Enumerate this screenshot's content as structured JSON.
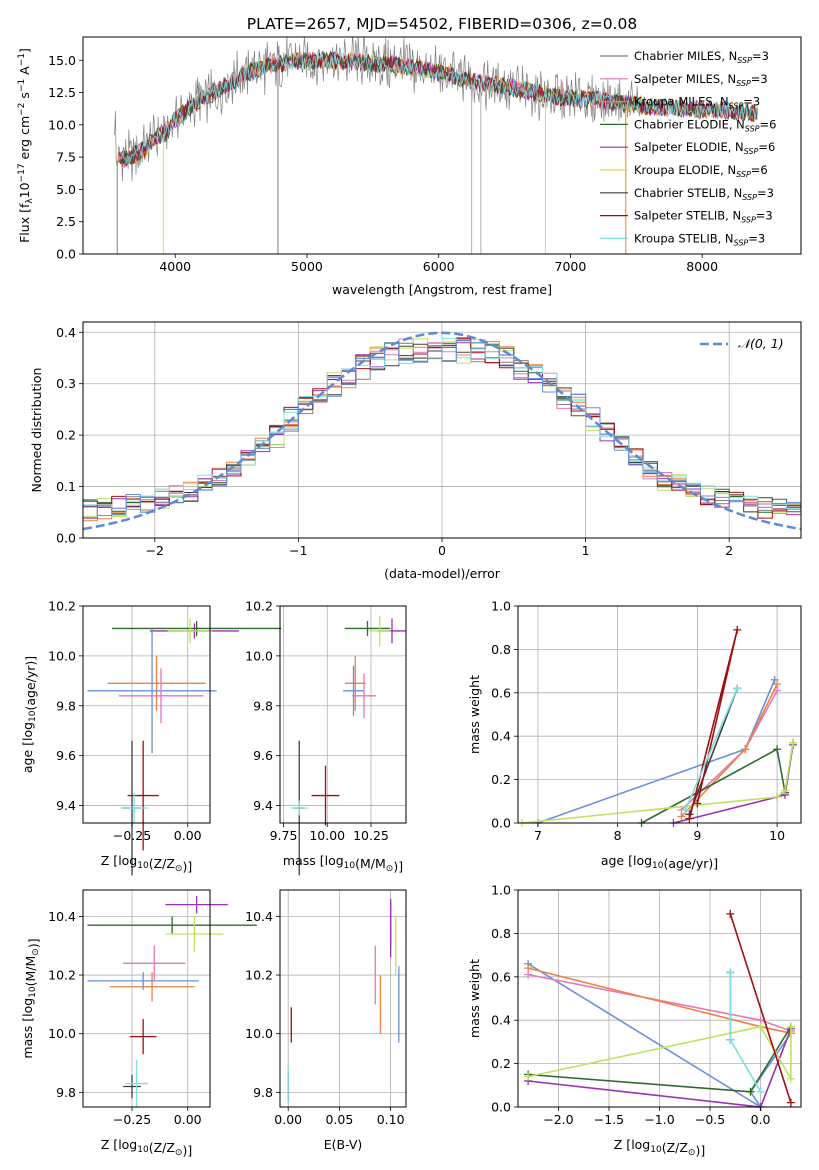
{
  "title": "PLATE=2657, MJD=54502, FIBERID=0306, z=0.08",
  "colors": [
    "#808080",
    "#e377c2",
    "#ff7f0e",
    "#2f6b2f",
    "#9b30b3",
    "#dada52",
    "#404040",
    "#a01010",
    "#7fdfdf",
    "#6a8fdc",
    "#f08040",
    "#c0e060"
  ],
  "chart_data": [
    {
      "id": "spectrum",
      "type": "line",
      "title": "PLATE=2657, MJD=54502, FIBERID=0306, z=0.08",
      "xlabel": "wavelength [Angstrom, rest frame]",
      "ylabel_parts": [
        "Flux [f",
        "λ",
        "10",
        "−17",
        " erg cm",
        "−2",
        " s",
        "−1",
        " A",
        "−1",
        "]"
      ],
      "xlim": [
        3300,
        8750
      ],
      "ylim": [
        0,
        16.8
      ],
      "xticks": [
        4000,
        5000,
        6000,
        7000,
        8000
      ],
      "yticks": [
        0.0,
        2.5,
        5.0,
        7.5,
        10.0,
        12.5,
        15.0
      ],
      "xtick_labels": [
        "4000",
        "5000",
        "6000",
        "7000",
        "8000"
      ],
      "ytick_labels": [
        "0.0",
        "2.5",
        "5.0",
        "7.5",
        "10.0",
        "12.5",
        "15.0"
      ],
      "legend_position": "right",
      "legend": [
        {
          "label": "Chabrier MILES, N",
          "sub": "SSP",
          "suffix": "=3",
          "color": "#808080"
        },
        {
          "label": "Salpeter MILES, N",
          "sub": "SSP",
          "suffix": "=3",
          "color": "#e377c2"
        },
        {
          "label": "Kroupa MILES, N",
          "sub": "SSP",
          "suffix": "=3",
          "color": "#ff7f0e"
        },
        {
          "label": "Chabrier ELODIE, N",
          "sub": "SSP",
          "suffix": "=6",
          "color": "#2f6b2f"
        },
        {
          "label": "Salpeter ELODIE, N",
          "sub": "SSP",
          "suffix": "=6",
          "color": "#9b30b3"
        },
        {
          "label": "Kroupa ELODIE, N",
          "sub": "SSP",
          "suffix": "=6",
          "color": "#dada52"
        },
        {
          "label": "Chabrier STELIB, N",
          "sub": "SSP",
          "suffix": "=3",
          "color": "#404040"
        },
        {
          "label": "Salpeter STELIB, N",
          "sub": "SSP",
          "suffix": "=3",
          "color": "#a01010"
        },
        {
          "label": "Kroupa STELIB, N",
          "sub": "SSP",
          "suffix": "=3",
          "color": "#7fdfdf"
        }
      ],
      "continuum": [
        [
          3550,
          7.2
        ],
        [
          3650,
          7.5
        ],
        [
          3750,
          8.0
        ],
        [
          3850,
          9.0
        ],
        [
          3950,
          9.5
        ],
        [
          4000,
          10.5
        ],
        [
          4100,
          11.2
        ],
        [
          4200,
          12.0
        ],
        [
          4300,
          12.5
        ],
        [
          4500,
          13.8
        ],
        [
          4700,
          14.6
        ],
        [
          4900,
          14.9
        ],
        [
          5100,
          15.0
        ],
        [
          5300,
          14.9
        ],
        [
          5500,
          14.8
        ],
        [
          5700,
          14.6
        ],
        [
          5900,
          14.3
        ],
        [
          6100,
          13.8
        ],
        [
          6300,
          13.3
        ],
        [
          6500,
          13.0
        ],
        [
          6700,
          12.6
        ],
        [
          6900,
          12.2
        ],
        [
          7100,
          12.0
        ],
        [
          7300,
          11.8
        ],
        [
          7400,
          11.7
        ],
        [
          7600,
          11.4
        ],
        [
          7800,
          11.3
        ],
        [
          8000,
          11.2
        ],
        [
          8200,
          11.1
        ],
        [
          8400,
          10.9
        ]
      ]
    },
    {
      "id": "residuals",
      "type": "histogram",
      "xlabel": "(data-model)/error",
      "ylabel": "Normed distribution",
      "xlim": [
        -2.5,
        2.5
      ],
      "ylim": [
        0,
        0.42
      ],
      "xticks": [
        -2,
        -1,
        0,
        1,
        2
      ],
      "yticks": [
        0.0,
        0.1,
        0.2,
        0.3,
        0.4
      ],
      "xtick_labels": [
        "−2",
        "−1",
        "0",
        "1",
        "2"
      ],
      "ytick_labels": [
        "0.0",
        "0.1",
        "0.2",
        "0.3",
        "0.4"
      ],
      "legend_position": "top-right",
      "legend_label": "𝒩(0, 1)",
      "gaussian": {
        "mu": 0,
        "sigma": 1,
        "color": "#5b8bd6"
      },
      "bin_width": 0.1,
      "base_profile": [
        0.04,
        0.05,
        0.06,
        0.07,
        0.07,
        0.08,
        0.08,
        0.09,
        0.1,
        0.11,
        0.12,
        0.13,
        0.14,
        0.15,
        0.16,
        0.17,
        0.18,
        0.2,
        0.22,
        0.24,
        0.26,
        0.28,
        0.29,
        0.3,
        0.31,
        0.31,
        0.32,
        0.32,
        0.33,
        0.33,
        0.34,
        0.34,
        0.35,
        0.35,
        0.35,
        0.35,
        0.34,
        0.34,
        0.33,
        0.31,
        0.29,
        0.27,
        0.25,
        0.23,
        0.21,
        0.19,
        0.17,
        0.15,
        0.14,
        0.13,
        0.12,
        0.11,
        0.1,
        0.1,
        0.09,
        0.08,
        0.08,
        0.07,
        0.07,
        0.06,
        0.06,
        0.06,
        0.05,
        0.05,
        0.05,
        0.05,
        0.05,
        0.04,
        0.04,
        0.04,
        0.04,
        0.03,
        0.03,
        0.03,
        0.03,
        0.03,
        0.02,
        0.02,
        0.02,
        0.02,
        0.02,
        0.02,
        0.02,
        0.02,
        0.02,
        0.02,
        0.02,
        0.02,
        0.02,
        0.02,
        0.02,
        0.02,
        0.02,
        0.02,
        0.02,
        0.02,
        0.02,
        0.02,
        0.02,
        0.02
      ]
    },
    {
      "id": "age-vs-Z",
      "type": "errorbar",
      "xlabel": "Z [log10(Z/Z⊙)]",
      "ylabel": "age  [log10(age/yr)]",
      "xlim": [
        -0.47,
        0.1
      ],
      "ylim": [
        9.33,
        10.2
      ],
      "xticks": [
        -0.25,
        0.0
      ],
      "yticks": [
        9.4,
        9.6,
        9.8,
        10.0,
        10.2
      ],
      "xtick_labels": [
        "−0.25",
        "0.00"
      ],
      "ytick_labels": [
        "9.4",
        "9.6",
        "9.8",
        "10.0",
        "10.2"
      ],
      "points": [
        {
          "x": 0.04,
          "y": 10.11,
          "xerr": 0.38,
          "yerr": 0.03,
          "color": "#2f6b2f"
        },
        {
          "x": 0.03,
          "y": 10.1,
          "xerr": 0.2,
          "yerr": 0.03,
          "color": "#9b30b3"
        },
        {
          "x": 0.01,
          "y": 10.1,
          "xerr": 0.1,
          "yerr": 0.05,
          "color": "#c0e060"
        },
        {
          "x": -0.14,
          "y": 9.89,
          "xerr": 0.22,
          "yerr": 0.11,
          "color": "#f08040"
        },
        {
          "x": -0.16,
          "y": 9.86,
          "xerr": 0.29,
          "yerr": 0.25,
          "color": "#6a8fdc"
        },
        {
          "x": -0.12,
          "y": 9.84,
          "xerr": 0.19,
          "yerr": 0.11,
          "color": "#e377c2"
        },
        {
          "x": -0.2,
          "y": 9.44,
          "xerr": 0.07,
          "yerr": 0.22,
          "color": "#a01010"
        },
        {
          "x": -0.25,
          "y": 9.39,
          "xerr": 0.04,
          "yerr": 0.27,
          "color": "#404040"
        },
        {
          "x": -0.24,
          "y": 9.39,
          "xerr": 0.06,
          "yerr": 0.06,
          "color": "#7fdfdf"
        }
      ]
    },
    {
      "id": "age-vs-mass",
      "type": "errorbar",
      "xlabel": "mass [log10(M/M⊙)]",
      "ylabel": "",
      "xlim": [
        9.73,
        10.45
      ],
      "ylim": [
        9.33,
        10.2
      ],
      "xticks": [
        9.75,
        10.0,
        10.25
      ],
      "yticks": [
        9.4,
        9.6,
        9.8,
        10.0,
        10.2
      ],
      "xtick_labels": [
        "9.75",
        "10.00",
        "10.25"
      ],
      "ytick_labels": [
        "9.4",
        "9.6",
        "9.8",
        "10.0",
        "10.2"
      ],
      "points": [
        {
          "x": 10.23,
          "y": 10.11,
          "xerr": 0.13,
          "yerr": 0.03,
          "color": "#2f6b2f"
        },
        {
          "x": 10.37,
          "y": 10.1,
          "xerr": 0.08,
          "yerr": 0.05,
          "color": "#9b30b3"
        },
        {
          "x": 10.3,
          "y": 10.1,
          "xerr": 0.06,
          "yerr": 0.06,
          "color": "#c0e060"
        },
        {
          "x": 10.16,
          "y": 9.89,
          "xerr": 0.06,
          "yerr": 0.11,
          "color": "#f08040"
        },
        {
          "x": 10.15,
          "y": 9.86,
          "xerr": 0.06,
          "yerr": 0.1,
          "color": "#6a8fdc"
        },
        {
          "x": 10.21,
          "y": 9.84,
          "xerr": 0.07,
          "yerr": 0.09,
          "color": "#e377c2"
        },
        {
          "x": 9.99,
          "y": 9.44,
          "xerr": 0.08,
          "yerr": 0.12,
          "color": "#a01010"
        },
        {
          "x": 9.84,
          "y": 9.39,
          "xerr": 0.03,
          "yerr": 0.27,
          "color": "#404040"
        },
        {
          "x": 9.84,
          "y": 9.39,
          "xerr": 0.05,
          "yerr": 0.03,
          "color": "#7fdfdf"
        }
      ]
    },
    {
      "id": "weight-vs-age",
      "type": "line",
      "xlabel": "age  [log10(age/yr)]",
      "ylabel": "mass weight",
      "xlim": [
        6.75,
        10.3
      ],
      "ylim": [
        0,
        1
      ],
      "xticks": [
        7,
        8,
        9,
        10
      ],
      "yticks": [
        0.0,
        0.2,
        0.4,
        0.6,
        0.8,
        1.0
      ],
      "xtick_labels": [
        "7",
        "8",
        "9",
        "10"
      ],
      "ytick_labels": [
        "0.0",
        "0.2",
        "0.4",
        "0.6",
        "0.8",
        "1.0"
      ],
      "series": [
        {
          "color": "#6a8fdc",
          "x": [
            7.0,
            9.6,
            9.97
          ],
          "y": [
            0.0,
            0.34,
            0.66
          ]
        },
        {
          "color": "#e377c2",
          "x": [
            8.8,
            9.6,
            10.0
          ],
          "y": [
            0.06,
            0.34,
            0.61
          ]
        },
        {
          "color": "#f08040",
          "x": [
            8.8,
            9.6,
            10.0
          ],
          "y": [
            0.03,
            0.34,
            0.64
          ]
        },
        {
          "color": "#2f6b2f",
          "x": [
            8.3,
            10.0,
            10.1,
            10.2
          ],
          "y": [
            0.0,
            0.34,
            0.14,
            0.37
          ]
        },
        {
          "color": "#9b30b3",
          "x": [
            8.7,
            10.0,
            10.1,
            10.2
          ],
          "y": [
            0.0,
            0.12,
            0.13,
            0.36
          ]
        },
        {
          "color": "#c0e060",
          "x": [
            6.8,
            10.0,
            10.1,
            10.2
          ],
          "y": [
            0.0,
            0.12,
            0.15,
            0.37
          ]
        },
        {
          "color": "#404040",
          "x": [
            8.9,
            9.5
          ],
          "y": [
            0.04,
            0.62
          ]
        },
        {
          "color": "#a01010",
          "x": [
            8.9,
            9.5,
            9.0
          ],
          "y": [
            0.02,
            0.89,
            0.09
          ]
        },
        {
          "color": "#7fdfdf",
          "x": [
            8.85,
            9.5
          ],
          "y": [
            0.06,
            0.62
          ]
        }
      ]
    },
    {
      "id": "mass-vs-Z",
      "type": "errorbar",
      "xlabel": "Z [log10(Z/Z⊙)]",
      "ylabel": "mass [log10(M/M⊙)]",
      "xlim": [
        -0.47,
        0.1
      ],
      "ylim": [
        9.75,
        10.49
      ],
      "xticks": [
        -0.25,
        0.0
      ],
      "yticks": [
        9.8,
        10.0,
        10.2,
        10.4
      ],
      "xtick_labels": [
        "−0.25",
        "0.00"
      ],
      "ytick_labels": [
        "9.8",
        "10.0",
        "10.2",
        "10.4"
      ],
      "points": [
        {
          "x": -0.07,
          "y": 10.37,
          "xerr": 0.38,
          "yerr": 0.03,
          "color": "#2f6b2f"
        },
        {
          "x": 0.04,
          "y": 10.44,
          "xerr": 0.14,
          "yerr": 0.03,
          "color": "#9b30b3"
        },
        {
          "x": 0.03,
          "y": 10.34,
          "xerr": 0.13,
          "yerr": 0.06,
          "color": "#c0e060"
        },
        {
          "x": -0.16,
          "y": 10.16,
          "xerr": 0.19,
          "yerr": 0.05,
          "color": "#f08040"
        },
        {
          "x": -0.2,
          "y": 10.18,
          "xerr": 0.25,
          "yerr": 0.03,
          "color": "#6a8fdc"
        },
        {
          "x": -0.15,
          "y": 10.24,
          "xerr": 0.14,
          "yerr": 0.06,
          "color": "#e377c2"
        },
        {
          "x": -0.2,
          "y": 9.99,
          "xerr": 0.06,
          "yerr": 0.06,
          "color": "#a01010"
        },
        {
          "x": -0.25,
          "y": 9.82,
          "xerr": 0.04,
          "yerr": 0.04,
          "color": "#404040"
        },
        {
          "x": -0.23,
          "y": 9.83,
          "xerr": 0.05,
          "yerr": 0.08,
          "color": "#7fdfdf"
        }
      ]
    },
    {
      "id": "mass-vs-EBV",
      "type": "errorbar",
      "xlabel": "E(B-V)",
      "ylabel": "",
      "xlim": [
        -0.008,
        0.115
      ],
      "ylim": [
        9.75,
        10.49
      ],
      "xticks": [
        0.0,
        0.05,
        0.1
      ],
      "yticks": [
        9.8,
        10.0,
        10.2,
        10.4
      ],
      "xtick_labels": [
        "0.00",
        "0.05",
        "0.10"
      ],
      "ytick_labels": [
        "9.8",
        "10.0",
        "10.2",
        "10.4"
      ],
      "points": [
        {
          "x": 0.1,
          "y": 10.37,
          "xerr": 0,
          "yerr": 0.08,
          "color": "#2f6b2f"
        },
        {
          "x": 0.1,
          "y": 10.36,
          "xerr": 0,
          "yerr": 0.1,
          "color": "#9b30b3"
        },
        {
          "x": 0.105,
          "y": 10.3,
          "xerr": 0,
          "yerr": 0.1,
          "color": "#c0e060"
        },
        {
          "x": 0.09,
          "y": 10.1,
          "xerr": 0,
          "yerr": 0.1,
          "color": "#f08040"
        },
        {
          "x": 0.108,
          "y": 10.1,
          "xerr": 0,
          "yerr": 0.13,
          "color": "#6a8fdc"
        },
        {
          "x": 0.085,
          "y": 10.2,
          "xerr": 0,
          "yerr": 0.1,
          "color": "#e377c2"
        },
        {
          "x": 0.003,
          "y": 10.03,
          "xerr": 0,
          "yerr": 0.06,
          "color": "#a01010"
        },
        {
          "x": 0.0,
          "y": 9.82,
          "xerr": 0,
          "yerr": 0.05,
          "color": "#404040"
        },
        {
          "x": 0.0,
          "y": 9.83,
          "xerr": 0,
          "yerr": 0.06,
          "color": "#7fdfdf"
        }
      ]
    },
    {
      "id": "weight-vs-Z",
      "type": "line",
      "xlabel": "Z [log10(Z/Z⊙)]",
      "ylabel": "mass weight",
      "xlim": [
        -2.4,
        0.4
      ],
      "ylim": [
        0,
        1
      ],
      "xticks": [
        -2.0,
        -1.5,
        -1.0,
        -0.5,
        0.0
      ],
      "yticks": [
        0.0,
        0.2,
        0.4,
        0.6,
        0.8,
        1.0
      ],
      "xtick_labels": [
        "−2.0",
        "−1.5",
        "−1.0",
        "−0.5",
        "0.0"
      ],
      "ytick_labels": [
        "0.0",
        "0.2",
        "0.4",
        "0.6",
        "0.8",
        "1.0"
      ],
      "series": [
        {
          "color": "#6a8fdc",
          "x": [
            -2.3,
            0.0,
            -0.1,
            0.3
          ],
          "y": [
            0.66,
            0.0,
            0.07,
            0.34
          ]
        },
        {
          "color": "#e377c2",
          "x": [
            -2.3,
            0.0,
            0.3
          ],
          "y": [
            0.61,
            0.4,
            0.35
          ]
        },
        {
          "color": "#f08040",
          "x": [
            -2.3,
            0.0,
            0.3
          ],
          "y": [
            0.64,
            0.37,
            0.34
          ]
        },
        {
          "color": "#2f6b2f",
          "x": [
            -2.3,
            -0.1,
            0.3
          ],
          "y": [
            0.15,
            0.07,
            0.37
          ]
        },
        {
          "color": "#9b30b3",
          "x": [
            -2.3,
            0.0,
            0.3
          ],
          "y": [
            0.12,
            0.0,
            0.36
          ]
        },
        {
          "color": "#c0e060",
          "x": [
            -2.3,
            0.0,
            0.3,
            0.3
          ],
          "y": [
            0.14,
            0.37,
            0.13,
            0.37
          ]
        },
        {
          "color": "#404040",
          "x": [
            -0.3,
            -0.3
          ],
          "y": [
            0.62,
            0.31
          ]
        },
        {
          "color": "#a01010",
          "x": [
            -0.3,
            0.3
          ],
          "y": [
            0.89,
            0.02
          ]
        },
        {
          "color": "#7fdfdf",
          "x": [
            -0.3,
            -0.3,
            0.0
          ],
          "y": [
            0.62,
            0.31,
            0.07
          ]
        }
      ]
    }
  ]
}
